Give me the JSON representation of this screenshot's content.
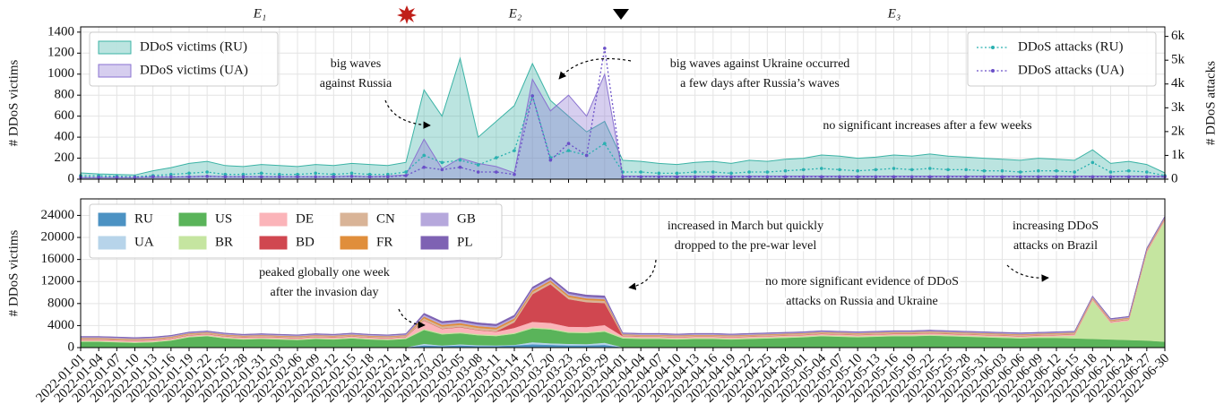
{
  "chart_data": [
    {
      "type": "area",
      "ylabel": "# DDoS victims",
      "y2label": "# DDoS attacks",
      "ylim": [
        0,
        1450
      ],
      "yticks": [
        0,
        200,
        400,
        600,
        800,
        1000,
        1200,
        1400
      ],
      "y2lim": [
        0,
        6400
      ],
      "y2ticks": [
        0,
        {
          "value": 1000,
          "label": "1k"
        },
        {
          "value": 2000,
          "label": "2k"
        },
        {
          "value": 3000,
          "label": "3k"
        },
        {
          "value": 4000,
          "label": "4k"
        },
        {
          "value": 5000,
          "label": "5k"
        },
        {
          "value": 6000,
          "label": "6k"
        }
      ],
      "grid": true,
      "legend": "upper left",
      "legend_y2": "upper right",
      "phases": [
        "E₁",
        "E₂",
        "E₃"
      ],
      "annotations": [
        [
          "big waves",
          "against Russia"
        ],
        [
          "big waves against Ukraine occurred",
          "a few days after Russia’s waves"
        ],
        [
          "no significant increases after a few weeks"
        ]
      ],
      "series": [
        {
          "name": "DDoS victims (RU)",
          "color": "#3bb3a5",
          "values": [
            60,
            50,
            45,
            40,
            80,
            110,
            150,
            170,
            130,
            120,
            140,
            130,
            120,
            140,
            130,
            150,
            140,
            130,
            160,
            850,
            600,
            1150,
            400,
            550,
            700,
            1100,
            750,
            600,
            450,
            550,
            180,
            170,
            150,
            140,
            160,
            170,
            150,
            180,
            170,
            190,
            200,
            230,
            220,
            200,
            210,
            230,
            220,
            240,
            220,
            210,
            200,
            190,
            180,
            200,
            190,
            180,
            280,
            150,
            170,
            140,
            60
          ]
        },
        {
          "name": "DDoS victims (UA)",
          "color": "#8a72d0",
          "values": [
            15,
            15,
            15,
            15,
            20,
            20,
            25,
            30,
            25,
            25,
            25,
            25,
            25,
            25,
            25,
            30,
            25,
            30,
            40,
            380,
            100,
            200,
            150,
            120,
            60,
            950,
            650,
            800,
            600,
            1000,
            30,
            30,
            30,
            30,
            30,
            30,
            30,
            30,
            30,
            30,
            30,
            30,
            30,
            30,
            30,
            30,
            30,
            30,
            30,
            30,
            30,
            30,
            30,
            30,
            30,
            30,
            30,
            30,
            30,
            30,
            30
          ]
        },
        {
          "name": "DDoS attacks (RU)",
          "color": "#2ab0b0",
          "axis": "y2",
          "values": [
            150,
            150,
            120,
            100,
            150,
            200,
            250,
            300,
            200,
            200,
            250,
            200,
            200,
            250,
            200,
            250,
            200,
            200,
            300,
            1000,
            700,
            800,
            600,
            900,
            1200,
            3500,
            900,
            1200,
            1000,
            1500,
            300,
            300,
            250,
            250,
            300,
            300,
            250,
            300,
            300,
            350,
            400,
            450,
            400,
            350,
            400,
            450,
            400,
            450,
            400,
            400,
            350,
            350,
            300,
            350,
            350,
            300,
            700,
            300,
            350,
            300,
            150
          ]
        },
        {
          "name": "DDoS attacks (UA)",
          "color": "#6a4fc8",
          "axis": "y2",
          "values": [
            80,
            80,
            80,
            80,
            100,
            100,
            100,
            120,
            100,
            100,
            100,
            100,
            100,
            100,
            100,
            120,
            100,
            100,
            150,
            500,
            400,
            500,
            300,
            300,
            200,
            3500,
            800,
            1500,
            1000,
            5500,
            100,
            100,
            100,
            100,
            100,
            100,
            100,
            100,
            100,
            100,
            100,
            100,
            100,
            100,
            100,
            100,
            100,
            100,
            100,
            100,
            100,
            100,
            100,
            100,
            100,
            100,
            100,
            100,
            100,
            100,
            100
          ]
        }
      ]
    },
    {
      "type": "stackedarea",
      "ylabel": "# DDoS victims",
      "ylim": [
        0,
        27000
      ],
      "yticks": [
        0,
        4000,
        8000,
        12000,
        16000,
        20000,
        24000
      ],
      "grid": true,
      "legend": "upper left",
      "annotations": [
        [
          "peaked globally one week",
          "after the invasion day"
        ],
        [
          "increased in March but quickly",
          "dropped to the pre-war level"
        ],
        [
          "no more significant evidence of DDoS",
          "attacks on Russia and Ukraine"
        ],
        [
          "increasing DDoS",
          "attacks on Brazil"
        ]
      ],
      "categories": [
        "2022-01-01",
        "2022-01-04",
        "2022-01-07",
        "2022-01-10",
        "2022-01-13",
        "2022-01-16",
        "2022-01-19",
        "2022-01-22",
        "2022-01-25",
        "2022-01-28",
        "2022-01-31",
        "2022-02-03",
        "2022-02-06",
        "2022-02-09",
        "2022-02-12",
        "2022-02-15",
        "2022-02-18",
        "2022-02-21",
        "2022-02-24",
        "2022-02-27",
        "2022-03-02",
        "2022-03-05",
        "2022-03-08",
        "2022-03-11",
        "2022-03-14",
        "2022-03-17",
        "2022-03-20",
        "2022-03-23",
        "2022-03-26",
        "2022-03-29",
        "2022-04-01",
        "2022-04-04",
        "2022-04-07",
        "2022-04-10",
        "2022-04-13",
        "2022-04-16",
        "2022-04-19",
        "2022-04-22",
        "2022-04-25",
        "2022-04-28",
        "2022-05-01",
        "2022-05-04",
        "2022-05-07",
        "2022-05-10",
        "2022-05-13",
        "2022-05-16",
        "2022-05-19",
        "2022-05-22",
        "2022-05-25",
        "2022-05-28",
        "2022-05-31",
        "2022-06-03",
        "2022-06-06",
        "2022-06-09",
        "2022-06-12",
        "2022-06-15",
        "2022-06-18",
        "2022-06-21",
        "2022-06-24",
        "2022-06-27",
        "2022-06-30"
      ],
      "series": [
        {
          "name": "RU",
          "color": "#4c92c3",
          "values": [
            50,
            50,
            50,
            50,
            50,
            50,
            50,
            50,
            50,
            50,
            50,
            50,
            50,
            50,
            50,
            50,
            50,
            50,
            50,
            400,
            300,
            400,
            300,
            300,
            400,
            600,
            500,
            400,
            400,
            500,
            50,
            50,
            50,
            50,
            50,
            50,
            50,
            50,
            50,
            50,
            50,
            50,
            50,
            50,
            50,
            50,
            50,
            50,
            50,
            50,
            50,
            50,
            50,
            50,
            50,
            50,
            50,
            50,
            50,
            50,
            50
          ]
        },
        {
          "name": "UA",
          "color": "#b7d4ea",
          "values": [
            30,
            30,
            30,
            30,
            30,
            30,
            30,
            30,
            30,
            30,
            30,
            30,
            30,
            30,
            30,
            30,
            30,
            30,
            30,
            300,
            100,
            200,
            150,
            100,
            100,
            400,
            300,
            300,
            250,
            400,
            30,
            30,
            30,
            30,
            30,
            30,
            30,
            30,
            30,
            30,
            30,
            30,
            30,
            30,
            30,
            30,
            30,
            30,
            30,
            30,
            30,
            30,
            30,
            30,
            30,
            30,
            30,
            30,
            30,
            30,
            30
          ]
        },
        {
          "name": "US",
          "color": "#5ab45a",
          "values": [
            1000,
            1000,
            900,
            800,
            900,
            1200,
            1800,
            2000,
            1600,
            1400,
            1500,
            1400,
            1300,
            1500,
            1400,
            1600,
            1400,
            1300,
            1500,
            2500,
            2000,
            2000,
            1800,
            1700,
            2000,
            2500,
            2500,
            2000,
            2000,
            2000,
            1600,
            1500,
            1500,
            1400,
            1500,
            1500,
            1400,
            1500,
            1600,
            1700,
            1800,
            2000,
            1900,
            1800,
            1900,
            2000,
            2000,
            2100,
            2000,
            1900,
            1800,
            1700,
            1600,
            1700,
            1700,
            1600,
            1500,
            1400,
            1300,
            1200,
            1000
          ]
        },
        {
          "name": "BR",
          "color": "#c5e5a0",
          "values": [
            150,
            150,
            150,
            150,
            150,
            150,
            150,
            150,
            150,
            150,
            150,
            150,
            150,
            150,
            150,
            150,
            150,
            150,
            150,
            200,
            200,
            200,
            200,
            200,
            200,
            200,
            200,
            200,
            200,
            200,
            200,
            200,
            200,
            200,
            200,
            200,
            200,
            200,
            200,
            200,
            200,
            200,
            200,
            200,
            200,
            200,
            200,
            200,
            200,
            200,
            200,
            200,
            200,
            200,
            300,
            500,
            7000,
            3000,
            3500,
            16000,
            22000
          ]
        },
        {
          "name": "DE",
          "color": "#fbb4b9",
          "values": [
            200,
            200,
            200,
            200,
            200,
            200,
            200,
            200,
            200,
            200,
            200,
            200,
            200,
            200,
            200,
            200,
            200,
            200,
            200,
            1500,
            800,
            900,
            700,
            600,
            900,
            1000,
            1000,
            900,
            900,
            1000,
            200,
            200,
            200,
            200,
            200,
            200,
            200,
            200,
            200,
            200,
            200,
            200,
            200,
            200,
            200,
            200,
            200,
            200,
            200,
            200,
            200,
            200,
            200,
            200,
            200,
            200,
            200,
            200,
            200,
            200,
            200
          ]
        },
        {
          "name": "BD",
          "color": "#d04750",
          "values": [
            50,
            50,
            50,
            50,
            50,
            50,
            50,
            50,
            50,
            50,
            50,
            50,
            50,
            50,
            50,
            50,
            50,
            50,
            50,
            50,
            50,
            50,
            50,
            50,
            1000,
            5000,
            7000,
            5000,
            4500,
            4000,
            50,
            50,
            50,
            50,
            50,
            50,
            50,
            50,
            50,
            50,
            50,
            50,
            50,
            50,
            50,
            50,
            50,
            50,
            50,
            50,
            50,
            50,
            50,
            50,
            50,
            50,
            50,
            50,
            50,
            50,
            50
          ]
        },
        {
          "name": "CN",
          "color": "#d9b497",
          "values": [
            200,
            200,
            200,
            200,
            200,
            200,
            200,
            200,
            200,
            200,
            200,
            200,
            200,
            200,
            200,
            200,
            200,
            200,
            200,
            400,
            400,
            400,
            400,
            400,
            400,
            400,
            400,
            400,
            400,
            400,
            200,
            200,
            200,
            200,
            200,
            200,
            200,
            200,
            200,
            200,
            200,
            200,
            200,
            200,
            200,
            200,
            200,
            200,
            200,
            200,
            200,
            200,
            200,
            200,
            200,
            200,
            200,
            200,
            200,
            200,
            200
          ]
        },
        {
          "name": "FR",
          "color": "#e08e3b",
          "values": [
            100,
            100,
            100,
            100,
            100,
            100,
            100,
            100,
            100,
            100,
            100,
            100,
            100,
            100,
            100,
            100,
            100,
            100,
            100,
            300,
            300,
            300,
            300,
            300,
            300,
            300,
            300,
            300,
            300,
            300,
            100,
            100,
            100,
            100,
            100,
            100,
            100,
            100,
            100,
            100,
            100,
            100,
            100,
            100,
            100,
            100,
            100,
            100,
            100,
            100,
            100,
            100,
            100,
            100,
            100,
            100,
            100,
            100,
            100,
            100,
            100
          ]
        },
        {
          "name": "GB",
          "color": "#b6a8dc",
          "values": [
            150,
            150,
            150,
            150,
            150,
            150,
            150,
            150,
            150,
            150,
            150,
            150,
            150,
            150,
            150,
            150,
            150,
            150,
            150,
            300,
            300,
            300,
            300,
            300,
            300,
            300,
            300,
            300,
            300,
            300,
            150,
            150,
            150,
            150,
            150,
            150,
            150,
            150,
            150,
            150,
            150,
            150,
            150,
            150,
            150,
            150,
            150,
            150,
            150,
            150,
            150,
            150,
            150,
            150,
            150,
            150,
            150,
            150,
            150,
            150,
            150
          ]
        },
        {
          "name": "PL",
          "color": "#7e62b3",
          "values": [
            100,
            100,
            100,
            100,
            100,
            100,
            100,
            100,
            100,
            100,
            100,
            100,
            100,
            100,
            100,
            100,
            100,
            100,
            100,
            300,
            300,
            300,
            300,
            300,
            300,
            300,
            300,
            300,
            300,
            300,
            100,
            100,
            100,
            100,
            100,
            100,
            100,
            100,
            100,
            100,
            100,
            100,
            100,
            100,
            100,
            100,
            100,
            100,
            100,
            100,
            100,
            100,
            100,
            100,
            100,
            100,
            100,
            100,
            100,
            100,
            100
          ]
        }
      ]
    }
  ]
}
